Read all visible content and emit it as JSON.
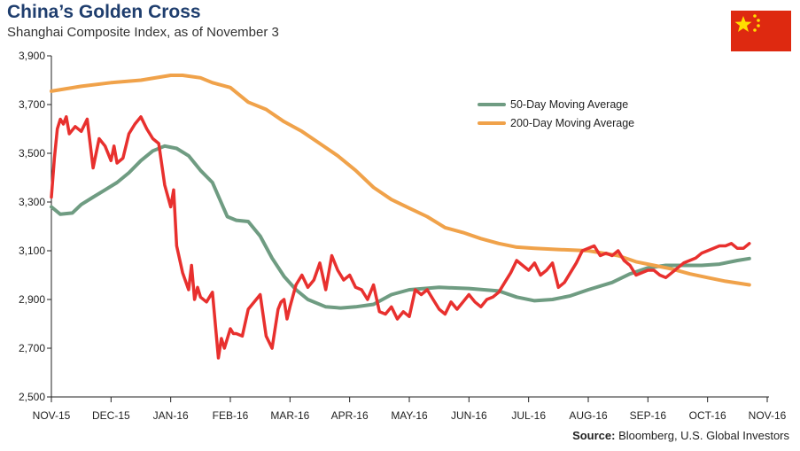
{
  "header": {
    "title": "China’s Golden Cross",
    "subtitle": "Shanghai Composite Index, as of November 3"
  },
  "footer": {
    "source_label": "Source:",
    "source_text": " Bloomberg, U.S. Global Investors"
  },
  "flag": {
    "icon": "china-flag-icon",
    "colors": {
      "field": "#de2910",
      "stars": "#ffde00"
    }
  },
  "chart_data": {
    "type": "line",
    "title": "China’s Golden Cross",
    "subtitle": "Shanghai Composite Index, as of November 3",
    "xlabel": "",
    "ylabel": "",
    "ylim": [
      2500,
      3900
    ],
    "yticks": [
      2500,
      2700,
      2900,
      3100,
      3300,
      3500,
      3700,
      3900
    ],
    "ytick_labels": [
      "2,500",
      "2,700",
      "2,900",
      "3,100",
      "3,300",
      "3,500",
      "3,700",
      "3,900"
    ],
    "x_tick_labels": [
      "NOV-15",
      "DEC-15",
      "JAN-16",
      "FEB-16",
      "MAR-16",
      "APR-16",
      "MAY-16",
      "JUN-16",
      "JUL-16",
      "AUG-16",
      "SEP-16",
      "OCT-16",
      "NOV-16"
    ],
    "x_unit": "months since NOV-15 tick",
    "grid": false,
    "legend_position": "top-right",
    "series": [
      {
        "name": "50-Day Moving Average",
        "color": "#6f9c82",
        "x": [
          0,
          0.15,
          0.35,
          0.5,
          0.7,
          0.9,
          1.1,
          1.3,
          1.5,
          1.7,
          1.9,
          2.1,
          2.3,
          2.5,
          2.7,
          2.95,
          3.1,
          3.3,
          3.5,
          3.7,
          3.9,
          4.1,
          4.3,
          4.6,
          4.85,
          5.1,
          5.4,
          5.7,
          6.0,
          6.5,
          7.0,
          7.5,
          7.8,
          8.1,
          8.4,
          8.7,
          9.0,
          9.4,
          9.7,
          10.0,
          10.3,
          10.6,
          10.9,
          11.2,
          11.5,
          11.7
        ],
        "values": [
          3280,
          3250,
          3255,
          3290,
          3320,
          3350,
          3380,
          3420,
          3470,
          3510,
          3530,
          3520,
          3490,
          3430,
          3380,
          3240,
          3225,
          3220,
          3160,
          3070,
          2995,
          2940,
          2900,
          2870,
          2865,
          2870,
          2880,
          2920,
          2940,
          2950,
          2945,
          2935,
          2910,
          2895,
          2900,
          2915,
          2940,
          2970,
          3005,
          3030,
          3040,
          3040,
          3040,
          3045,
          3060,
          3068
        ]
      },
      {
        "name": "200-Day Moving Average",
        "color": "#f0a24a",
        "x": [
          0,
          0.5,
          1.0,
          1.5,
          2.0,
          2.2,
          2.5,
          2.7,
          3.0,
          3.3,
          3.6,
          3.9,
          4.2,
          4.5,
          4.8,
          5.1,
          5.4,
          5.7,
          6.0,
          6.3,
          6.6,
          6.9,
          7.2,
          7.5,
          7.8,
          8.1,
          8.5,
          9.0,
          9.5,
          9.8,
          10.1,
          10.4,
          10.7,
          11.0,
          11.3,
          11.7
        ],
        "values": [
          3755,
          3775,
          3790,
          3800,
          3820,
          3820,
          3810,
          3790,
          3770,
          3710,
          3680,
          3630,
          3590,
          3540,
          3490,
          3430,
          3360,
          3310,
          3275,
          3240,
          3195,
          3175,
          3150,
          3130,
          3115,
          3110,
          3105,
          3100,
          3080,
          3055,
          3040,
          3025,
          3005,
          2990,
          2975,
          2960
        ]
      },
      {
        "name": "Shanghai Composite Index",
        "color": "#e8302e",
        "x": [
          0,
          0.05,
          0.1,
          0.15,
          0.2,
          0.25,
          0.3,
          0.4,
          0.5,
          0.6,
          0.7,
          0.8,
          0.9,
          1.0,
          1.05,
          1.1,
          1.2,
          1.3,
          1.4,
          1.5,
          1.6,
          1.7,
          1.8,
          1.9,
          2.0,
          2.05,
          2.1,
          2.2,
          2.3,
          2.35,
          2.4,
          2.45,
          2.5,
          2.6,
          2.7,
          2.8,
          2.85,
          2.9,
          3.0,
          3.05,
          3.1,
          3.2,
          3.3,
          3.5,
          3.6,
          3.7,
          3.8,
          3.85,
          3.9,
          3.95,
          4.0,
          4.1,
          4.2,
          4.3,
          4.4,
          4.5,
          4.6,
          4.7,
          4.8,
          4.9,
          5.0,
          5.1,
          5.2,
          5.3,
          5.4,
          5.5,
          5.6,
          5.7,
          5.8,
          5.9,
          6.0,
          6.1,
          6.2,
          6.3,
          6.4,
          6.5,
          6.6,
          6.7,
          6.8,
          6.9,
          7.0,
          7.1,
          7.2,
          7.3,
          7.4,
          7.5,
          7.6,
          7.7,
          7.8,
          7.9,
          8.0,
          8.1,
          8.2,
          8.3,
          8.4,
          8.5,
          8.6,
          8.7,
          8.8,
          8.9,
          9.0,
          9.1,
          9.2,
          9.3,
          9.4,
          9.5,
          9.6,
          9.7,
          9.8,
          9.9,
          10.0,
          10.1,
          10.2,
          10.3,
          10.4,
          10.5,
          10.6,
          10.7,
          10.8,
          10.9,
          11.0,
          11.1,
          11.2,
          11.3,
          11.4,
          11.5,
          11.6,
          11.7
        ],
        "values": [
          3320,
          3480,
          3600,
          3640,
          3620,
          3650,
          3580,
          3610,
          3590,
          3640,
          3440,
          3560,
          3530,
          3470,
          3530,
          3460,
          3480,
          3580,
          3620,
          3650,
          3600,
          3560,
          3540,
          3370,
          3280,
          3350,
          3120,
          3010,
          2940,
          3040,
          2900,
          2950,
          2910,
          2890,
          2930,
          2660,
          2740,
          2700,
          2780,
          2760,
          2760,
          2750,
          2860,
          2920,
          2750,
          2700,
          2860,
          2890,
          2900,
          2820,
          2870,
          2960,
          3000,
          2950,
          2980,
          3050,
          2940,
          3080,
          3020,
          2980,
          3000,
          2950,
          2940,
          2900,
          2960,
          2850,
          2840,
          2870,
          2820,
          2850,
          2830,
          2940,
          2920,
          2940,
          2900,
          2860,
          2840,
          2890,
          2860,
          2890,
          2920,
          2890,
          2870,
          2900,
          2910,
          2930,
          2970,
          3010,
          3060,
          3040,
          3020,
          3050,
          3000,
          3020,
          3050,
          2950,
          2970,
          3010,
          3050,
          3100,
          3110,
          3120,
          3080,
          3090,
          3080,
          3100,
          3060,
          3040,
          3000,
          3010,
          3020,
          3020,
          3000,
          2990,
          3010,
          3030,
          3050,
          3060,
          3070,
          3090,
          3100,
          3110,
          3120,
          3120,
          3130,
          3110,
          3110,
          3130
        ]
      }
    ]
  }
}
